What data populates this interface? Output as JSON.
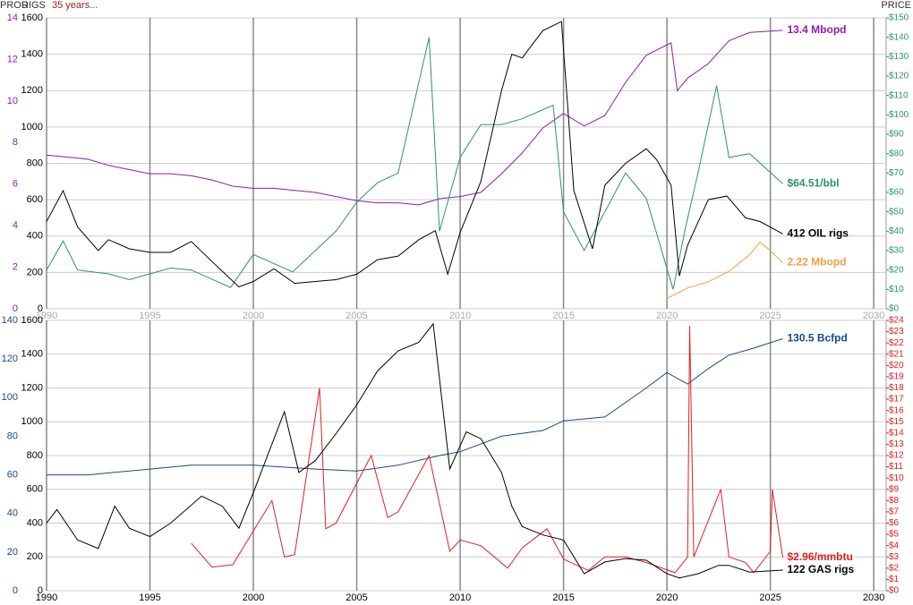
{
  "chart_data": [
    {
      "type": "line",
      "ylabel": "RIGS",
      "y3label": "PROD",
      "subtitle": "35 years...",
      "y2label": "PRICE",
      "xlim": [
        1990,
        2030.6
      ],
      "xticks": [
        1990,
        1995,
        2000,
        2005,
        2010,
        2015,
        2020,
        2025,
        2030
      ],
      "xtick_color": "#aaaaaa",
      "ylim": [
        0,
        1600
      ],
      "yticks": [
        0,
        200,
        400,
        600,
        800,
        1000,
        1200,
        1400,
        1600
      ],
      "y3lim": [
        0,
        14
      ],
      "y3ticks": [
        0,
        2,
        4,
        6,
        8,
        10,
        12,
        14
      ],
      "y3_color": "#8b1fa8",
      "y2lim": [
        0,
        150
      ],
      "y2_color": "#2e9466",
      "y2ticks": [
        {
          "value": 0,
          "label": "$0"
        },
        {
          "value": 10,
          "label": "$10"
        },
        {
          "value": 20,
          "label": "$20"
        },
        {
          "value": 30,
          "label": "$30"
        },
        {
          "value": 40,
          "label": "$40"
        },
        {
          "value": 50,
          "label": "$50"
        },
        {
          "value": 60,
          "label": "$60"
        },
        {
          "value": 70,
          "label": "$70"
        },
        {
          "value": 80,
          "label": "$80"
        },
        {
          "value": 90,
          "label": "$90"
        },
        {
          "value": 100,
          "label": "$100"
        },
        {
          "value": 110,
          "label": "$110"
        },
        {
          "value": 120,
          "label": "$120"
        },
        {
          "value": 130,
          "label": "$130"
        },
        {
          "value": 140,
          "label": "$140"
        },
        {
          "value": 150,
          "label": "$150"
        }
      ],
      "grid": true,
      "series": [
        {
          "name": "13.4 Mbopd",
          "color": "#8b1fa8",
          "axis": "y3",
          "x": [
            1990,
            1991,
            1992,
            1993,
            1994,
            1995,
            1996,
            1997,
            1998,
            1999,
            2000,
            2001,
            2002,
            2003,
            2004,
            2005,
            2006,
            2007,
            2008,
            2009,
            2010,
            2011,
            2012,
            2013,
            2014,
            2015,
            2016,
            2017,
            2018,
            2019,
            2020.2,
            2020.5,
            2021,
            2022,
            2023,
            2024,
            2025.6
          ],
          "values": [
            7.4,
            7.3,
            7.2,
            6.9,
            6.7,
            6.5,
            6.5,
            6.4,
            6.2,
            5.9,
            5.8,
            5.8,
            5.7,
            5.6,
            5.4,
            5.2,
            5.1,
            5.1,
            5.0,
            5.3,
            5.4,
            5.6,
            6.5,
            7.5,
            8.7,
            9.4,
            8.8,
            9.3,
            10.9,
            12.2,
            12.8,
            10.5,
            11.1,
            11.8,
            12.9,
            13.3,
            13.4
          ]
        },
        {
          "name": "$64.51/bbl",
          "color": "#2e9466",
          "axis": "y2",
          "x": [
            1990,
            1990.8,
            1991.5,
            1993,
            1994,
            1996,
            1997,
            1998.9,
            2000,
            2001.9,
            2003,
            2004,
            2005,
            2006,
            2007,
            2008.5,
            2009,
            2010,
            2011,
            2012,
            2013,
            2014.5,
            2015,
            2016,
            2017,
            2018,
            2019,
            2020.3,
            2020.9,
            2021.5,
            2022.4,
            2023,
            2024,
            2025.6
          ],
          "values": [
            20,
            35,
            20,
            18,
            15,
            21,
            20,
            11,
            28,
            19,
            30,
            40,
            55,
            65,
            70,
            140,
            40,
            78,
            95,
            95,
            98,
            105,
            50,
            30,
            50,
            70,
            57,
            10,
            42,
            70,
            115,
            78,
            80,
            64.51
          ]
        },
        {
          "name": "412 OIL rigs",
          "color": "#000000",
          "axis": "y",
          "x": [
            1990,
            1990.8,
            1991.5,
            1992.5,
            1993,
            1994,
            1995,
            1996,
            1997,
            1998,
            1999.3,
            2000,
            2001,
            2002,
            2003,
            2004,
            2005,
            2006,
            2007,
            2008,
            2008.8,
            2009.4,
            2010,
            2011,
            2012,
            2012.5,
            2013,
            2014,
            2014.9,
            2015.5,
            2016.4,
            2017,
            2018,
            2019,
            2019.5,
            2020.2,
            2020.6,
            2021,
            2022,
            2022.9,
            2023.8,
            2024.5,
            2025.6
          ],
          "values": [
            480,
            650,
            450,
            320,
            380,
            330,
            310,
            310,
            370,
            260,
            120,
            150,
            220,
            140,
            150,
            160,
            190,
            270,
            290,
            380,
            430,
            190,
            420,
            700,
            1200,
            1400,
            1380,
            1530,
            1580,
            650,
            330,
            680,
            800,
            880,
            820,
            680,
            180,
            350,
            600,
            620,
            500,
            480,
            412
          ]
        },
        {
          "name": "2.22 Mbopd",
          "color": "#f0a040",
          "axis": "y3",
          "x": [
            2020,
            2021,
            2022,
            2023,
            2024,
            2024.5,
            2025,
            2025.6
          ],
          "values": [
            0.5,
            1.0,
            1.3,
            1.8,
            2.6,
            3.2,
            2.8,
            2.22
          ]
        }
      ]
    },
    {
      "type": "line",
      "xlim": [
        1990,
        2030.6
      ],
      "xticks": [
        1990,
        1995,
        2000,
        2005,
        2010,
        2015,
        2020,
        2025,
        2030
      ],
      "xtick_color": "#000000",
      "ylim": [
        0,
        1600
      ],
      "yticks": [
        0,
        200,
        400,
        600,
        800,
        1000,
        1200,
        1400,
        1600
      ],
      "y3lim": [
        0,
        140
      ],
      "y3ticks": [
        0,
        20,
        40,
        60,
        80,
        100,
        120,
        140
      ],
      "y3_color": "#1a4a8a",
      "y2lim": [
        0,
        24
      ],
      "y2_color": "#e02020",
      "y2ticks": [
        {
          "value": 0,
          "label": "$0"
        },
        {
          "value": 1,
          "label": "$1"
        },
        {
          "value": 2,
          "label": "$2"
        },
        {
          "value": 3,
          "label": "$3"
        },
        {
          "value": 4,
          "label": "$4"
        },
        {
          "value": 5,
          "label": "$5"
        },
        {
          "value": 6,
          "label": "$6"
        },
        {
          "value": 7,
          "label": "$7"
        },
        {
          "value": 8,
          "label": "$8"
        },
        {
          "value": 9,
          "label": "$9"
        },
        {
          "value": 10,
          "label": "$10"
        },
        {
          "value": 11,
          "label": "$11"
        },
        {
          "value": 12,
          "label": "$12"
        },
        {
          "value": 13,
          "label": "$13"
        },
        {
          "value": 14,
          "label": "$14"
        },
        {
          "value": 15,
          "label": "$15"
        },
        {
          "value": 16,
          "label": "$16"
        },
        {
          "value": 17,
          "label": "$17"
        },
        {
          "value": 18,
          "label": "$18"
        },
        {
          "value": 19,
          "label": "$19"
        },
        {
          "value": 20,
          "label": "$20"
        },
        {
          "value": 21,
          "label": "$21"
        },
        {
          "value": 22,
          "label": "$22"
        },
        {
          "value": 23,
          "label": "$23"
        },
        {
          "value": 24,
          "label": "$24"
        }
      ],
      "grid": true,
      "series": [
        {
          "name": "130.5 Bcfpd",
          "color": "#1a4a8a",
          "axis": "y3",
          "x": [
            1990,
            1992,
            1995,
            1997,
            2000,
            2003,
            2005,
            2007,
            2009,
            2010,
            2012,
            2014,
            2015,
            2017,
            2019,
            2020,
            2021,
            2022,
            2023,
            2024,
            2025.6
          ],
          "values": [
            60,
            60,
            63,
            65,
            65,
            63,
            62,
            65,
            70,
            72,
            80,
            83,
            88,
            90,
            105,
            113,
            107,
            115,
            122,
            125,
            130.5
          ]
        },
        {
          "name": "$2.96/mmbtu",
          "color": "#e02020",
          "axis": "y2",
          "x": [
            1997,
            1998,
            1999,
            2000.9,
            2001.5,
            2002,
            2003.2,
            2003.5,
            2004,
            2005.7,
            2006.5,
            2007,
            2008.5,
            2009.5,
            2010,
            2011,
            2012.3,
            2013,
            2014.2,
            2015,
            2016.2,
            2017,
            2018,
            2019,
            2020.4,
            2021,
            2021.1,
            2021.3,
            2022.6,
            2023,
            2023.8,
            2024.2,
            2025,
            2025.1,
            2025.6
          ],
          "values": [
            4.2,
            2.1,
            2.3,
            8,
            3,
            3.2,
            18,
            5.5,
            6,
            12,
            6.5,
            7,
            12,
            3.5,
            4.5,
            4,
            2,
            3.8,
            5.5,
            2.8,
            1.8,
            3,
            3,
            2.5,
            1.6,
            3,
            23.5,
            3,
            9,
            3,
            2.5,
            1.6,
            3.5,
            9,
            2.96
          ]
        },
        {
          "name": "122 GAS rigs",
          "color": "#000000",
          "axis": "y",
          "x": [
            1990,
            1990.5,
            1991.5,
            1992.5,
            1993.3,
            1994,
            1995,
            1996,
            1997.5,
            1998.5,
            1999.3,
            2000,
            2001.5,
            2002.2,
            2003,
            2004,
            2005,
            2006,
            2007,
            2008,
            2008.7,
            2009.5,
            2010.3,
            2011,
            2012,
            2012.5,
            2013,
            2014,
            2015,
            2016,
            2017,
            2018,
            2019,
            2020,
            2020.6,
            2021.5,
            2022.5,
            2023,
            2024,
            2025.6
          ],
          "values": [
            400,
            480,
            300,
            250,
            500,
            370,
            320,
            400,
            560,
            500,
            370,
            580,
            1060,
            700,
            770,
            930,
            1100,
            1300,
            1420,
            1470,
            1580,
            720,
            940,
            900,
            700,
            500,
            380,
            330,
            300,
            100,
            170,
            190,
            180,
            100,
            75,
            100,
            150,
            150,
            110,
            122
          ]
        }
      ]
    }
  ]
}
